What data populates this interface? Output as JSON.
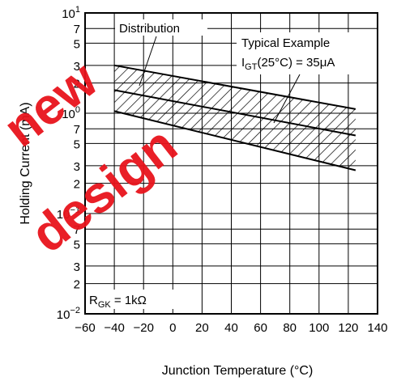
{
  "chart_data": {
    "type": "line",
    "title": "",
    "xlabel": "Junction Temperature  (°C)",
    "ylabel": "Holding Current  (mA)",
    "x_ticks": [
      -60,
      -40,
      -20,
      0,
      20,
      40,
      60,
      80,
      100,
      120,
      140
    ],
    "xlim": [
      -60,
      140
    ],
    "y_scale": "log",
    "ylim": [
      0.01,
      10
    ],
    "y_ticks": [
      {
        "value": 10,
        "mant": "10",
        "exp": "1"
      },
      {
        "value": 7,
        "mant": "7",
        "exp": ""
      },
      {
        "value": 5,
        "mant": "5",
        "exp": ""
      },
      {
        "value": 3,
        "mant": "3",
        "exp": ""
      },
      {
        "value": 2,
        "mant": "2",
        "exp": ""
      },
      {
        "value": 1,
        "mant": "10",
        "exp": "0"
      },
      {
        "value": 0.7,
        "mant": "7",
        "exp": ""
      },
      {
        "value": 0.5,
        "mant": "5",
        "exp": ""
      },
      {
        "value": 0.3,
        "mant": "3",
        "exp": ""
      },
      {
        "value": 0.2,
        "mant": "2",
        "exp": ""
      },
      {
        "value": 0.1,
        "mant": "10",
        "exp": "−1"
      },
      {
        "value": 0.07,
        "mant": "7",
        "exp": ""
      },
      {
        "value": 0.05,
        "mant": "5",
        "exp": ""
      },
      {
        "value": 0.03,
        "mant": "3",
        "exp": ""
      },
      {
        "value": 0.02,
        "mant": "2",
        "exp": ""
      },
      {
        "value": 0.01,
        "mant": "10",
        "exp": "−2"
      }
    ],
    "grid": true,
    "series": [
      {
        "name": "",
        "x": [
          -40,
          125
        ],
        "y": [
          3.0,
          1.1
        ]
      },
      {
        "name": "",
        "x": [
          -40,
          125
        ],
        "y": [
          1.7,
          0.6
        ]
      },
      {
        "name": "",
        "x": [
          -40,
          125
        ],
        "y": [
          1.05,
          0.27
        ]
      }
    ],
    "shaded_band": {
      "upper": [
        [
          -40,
          3.0
        ],
        [
          125,
          1.1
        ]
      ],
      "lower": [
        [
          -40,
          1.05
        ],
        [
          125,
          0.27
        ]
      ]
    },
    "annotations": {
      "distribution": "Distribution",
      "typical_title": "Typical Example",
      "typical_var": "I",
      "typical_sub": "GT",
      "typical_cond": "(25°C) = 35μA",
      "rgk_var": "R",
      "rgk_sub": "GK",
      "rgk_val": " = 1kΩ"
    }
  },
  "watermark": {
    "line1": "new",
    "line2": "design",
    "color": "#e8141c"
  }
}
